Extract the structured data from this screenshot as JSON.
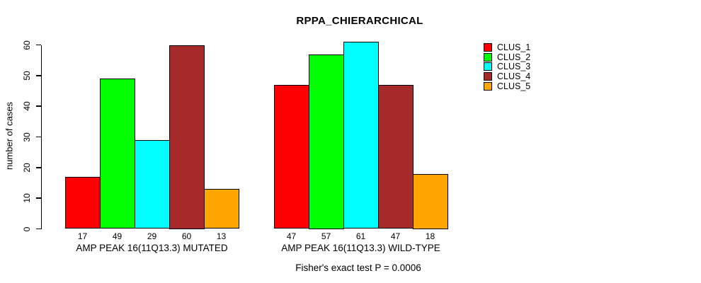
{
  "title": "RPPA_CHIERARCHICAL",
  "chart_data": {
    "type": "bar",
    "title": "RPPA_CHIERARCHICAL",
    "ylabel": "number of cases",
    "xlabel": "",
    "ylim": [
      0,
      61
    ],
    "yticks": [
      "0",
      "10",
      "20",
      "30",
      "40",
      "50",
      "60"
    ],
    "ytick_values": [
      0,
      10,
      20,
      30,
      40,
      50,
      60
    ],
    "grid": false,
    "legend_position": "right",
    "legend": [
      {
        "label": "CLUS_1",
        "color": "#FF0000"
      },
      {
        "label": "CLUS_2",
        "color": "#00FF00"
      },
      {
        "label": "CLUS_3",
        "color": "#00FFFF"
      },
      {
        "label": "CLUS_4",
        "color": "#A52A2A"
      },
      {
        "label": "CLUS_5",
        "color": "#FFA500"
      }
    ],
    "groups": [
      {
        "label": "AMP PEAK 16(11Q13.3) MUTATED",
        "categories": [
          "CLUS_1",
          "CLUS_2",
          "CLUS_3",
          "CLUS_4",
          "CLUS_5"
        ],
        "values": [
          17,
          49,
          29,
          60,
          13
        ]
      },
      {
        "label": "AMP PEAK 16(11Q13.3) WILD-TYPE",
        "categories": [
          "CLUS_1",
          "CLUS_2",
          "CLUS_3",
          "CLUS_4",
          "CLUS_5"
        ],
        "values": [
          47,
          57,
          61,
          47,
          18
        ]
      }
    ],
    "annotation": "Fisher's exact test P = 0.0006"
  },
  "colors": {
    "background": "#FFFFFF",
    "axis": "#000000",
    "bar_border": "#000000",
    "text": "#000000"
  }
}
